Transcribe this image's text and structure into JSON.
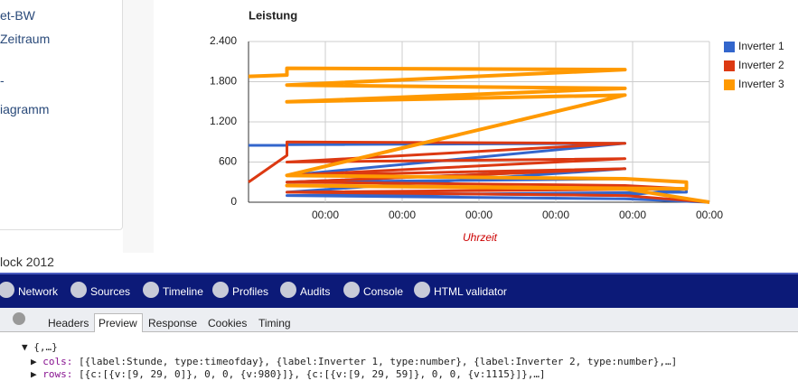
{
  "sidebar": {
    "items": [
      "et-BW",
      "Zeitraum",
      "-",
      "iagramm"
    ],
    "footer": "lock 2012"
  },
  "devtools": {
    "toolbar": [
      "Network",
      "Sources",
      "Timeline",
      "Profiles",
      "Audits",
      "Console",
      "HTML validator"
    ],
    "tabs": [
      "Headers",
      "Preview",
      "Response",
      "Cookies",
      "Timing"
    ],
    "selected_tab": "Preview",
    "tree": {
      "root": "{,…}",
      "entries": [
        {
          "key": "cols:",
          "value": "[{label:Stunde, type:timeofday}, {label:Inverter 1, type:number}, {label:Inverter 2, type:number},…]"
        },
        {
          "key": "rows:",
          "value": "[{c:[{v:[9, 29, 0]}, 0, 0, {v:980}]}, {c:[{v:[9, 29, 59]}, 0, 0, {v:1115}]},…]"
        }
      ]
    }
  },
  "chart_data": {
    "type": "line",
    "title": "Leistung",
    "x_label": "Uhrzeit",
    "x": [
      0.0,
      0.5,
      0.5,
      4.9,
      0.5,
      4.9,
      0.5,
      4.9,
      0.5,
      4.9,
      5.7,
      5.7,
      0.5,
      4.9,
      6.0
    ],
    "series": [
      {
        "name": "Inverter 1",
        "color": "#3366cc",
        "values": [
          850,
          850,
          860,
          880,
          400,
          350,
          300,
          500,
          150,
          100,
          200,
          150,
          100,
          50,
          0
        ]
      },
      {
        "name": "Inverter 2",
        "color": "#dc3912",
        "values": [
          300,
          700,
          900,
          880,
          600,
          650,
          400,
          500,
          300,
          250,
          200,
          200,
          150,
          100,
          0
        ]
      },
      {
        "name": "Inverter 3",
        "color": "#ff9900",
        "values": [
          1880,
          1900,
          2000,
          1980,
          1750,
          1700,
          1500,
          1600,
          400,
          350,
          300,
          200,
          250,
          200,
          0
        ]
      }
    ],
    "xlim": [
      0,
      6
    ],
    "xticks": [
      {
        "value": 1,
        "label": "00:00"
      },
      {
        "value": 2,
        "label": "00:00"
      },
      {
        "value": 3,
        "label": "00:00"
      },
      {
        "value": 4,
        "label": "00:00"
      },
      {
        "value": 5,
        "label": "00:00"
      },
      {
        "value": 6,
        "label": "00:00"
      }
    ],
    "ylim": [
      0,
      2400
    ],
    "yticks": [
      0,
      600,
      {
        "value": 1200,
        "label": "1.200"
      },
      {
        "value": 1800,
        "label": "1.800"
      },
      {
        "value": 2400,
        "label": "2.400"
      }
    ],
    "grid": true,
    "legend": "right"
  }
}
